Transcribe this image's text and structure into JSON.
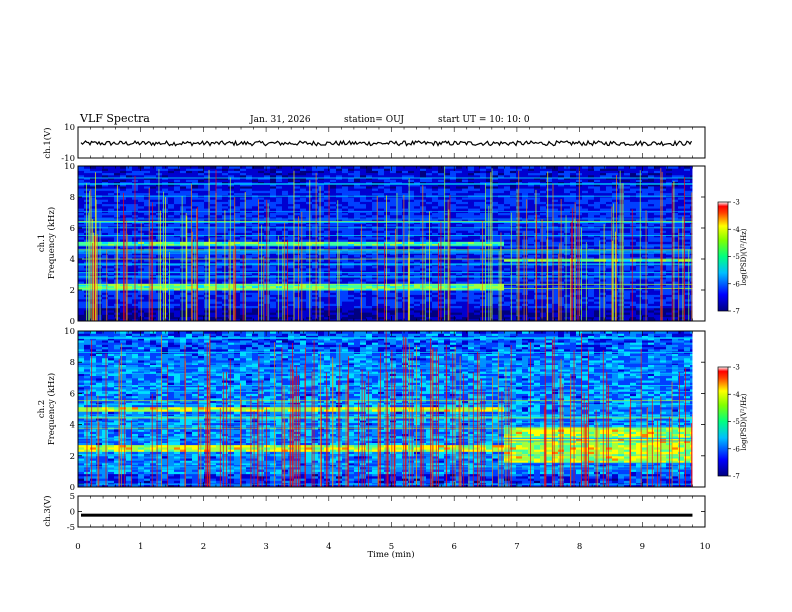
{
  "header": {
    "title": "VLF Spectra",
    "date": "Jan. 31, 2026",
    "station": "station= OUJ",
    "start": "start  UT  =   10: 10: 0"
  },
  "colors": {
    "colormap": [
      "#000080",
      "#0000d0",
      "#0040ff",
      "#0090ff",
      "#00e0ff",
      "#40ffa0",
      "#a0ff40",
      "#ffff00",
      "#ff8000",
      "#ff0000",
      "#ffffff"
    ],
    "trace": "#000000"
  },
  "chart_data": [
    {
      "type": "line",
      "name": "ch1-waveform",
      "ylabel": "ch.1(V)",
      "ylim": [
        -10,
        10
      ],
      "yticks": [
        "10",
        "-10"
      ],
      "baseline": -0.5,
      "amplitude": 1.5
    },
    {
      "type": "heatmap",
      "name": "ch1-spectrogram",
      "ylabel": "ch.1\nFrequency (kHz)",
      "ylim": [
        0,
        10
      ],
      "yticks": [
        "0",
        "2",
        "4",
        "6",
        "8",
        "10"
      ],
      "colorbar_label": "log(PSD)(V²/Hz)",
      "colorbar_range": [
        -7,
        -3
      ],
      "colorbar_ticks": [
        "-3",
        "-4",
        "-5",
        "-6",
        "-7"
      ],
      "band_change_min": 6.75,
      "bands_before": [
        [
          4.8,
          5.2
        ],
        [
          2.0,
          2.4
        ]
      ],
      "bands_after": [
        [
          3.8,
          4.0
        ]
      ],
      "intensity": 0.35
    },
    {
      "type": "heatmap",
      "name": "ch2-spectrogram",
      "ylabel": "ch.2\nFrequency (kHz)",
      "ylim": [
        0,
        10
      ],
      "yticks": [
        "0",
        "2",
        "4",
        "6",
        "8",
        "10"
      ],
      "colorbar_label": "log(PSD)(V²/Hz)",
      "colorbar_range": [
        -7,
        -3
      ],
      "colorbar_ticks": [
        "-3",
        "-4",
        "-5",
        "-6",
        "-7"
      ],
      "band_change_min": 6.75,
      "bands_before": [
        [
          4.8,
          5.2
        ],
        [
          2.3,
          2.7
        ]
      ],
      "bands_after": [
        [
          1.6,
          3.8
        ]
      ],
      "intensity": 0.55
    },
    {
      "type": "line",
      "name": "ch3-waveform",
      "ylabel": "ch.3(V)",
      "ylim": [
        -5,
        5
      ],
      "yticks": [
        "5",
        "0",
        "-5"
      ],
      "baseline": -1.0,
      "amplitude": 0.3
    }
  ],
  "xaxis": {
    "label": "Time (min)",
    "range": [
      0,
      10
    ],
    "ticks": [
      "0",
      "1",
      "2",
      "3",
      "4",
      "5",
      "6",
      "7",
      "8",
      "9",
      "10"
    ],
    "data_end_min": 9.8
  }
}
